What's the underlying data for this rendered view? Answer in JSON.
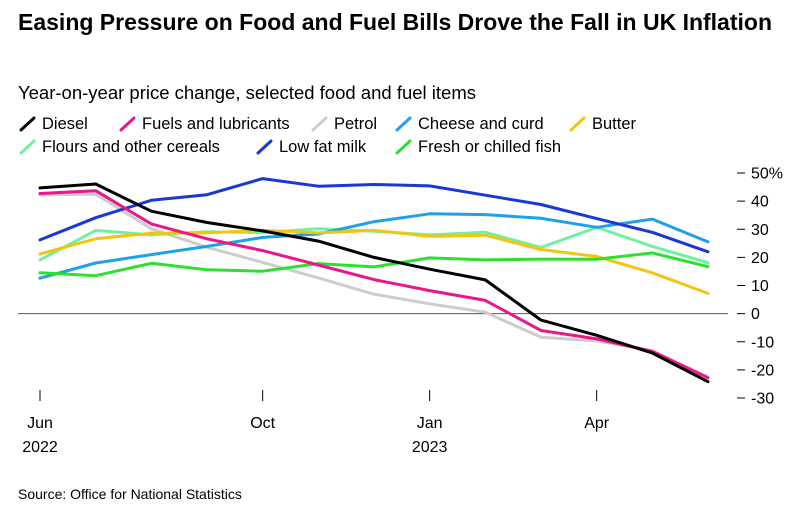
{
  "title": "Easing Pressure on Food and Fuel Bills Drove the Fall in UK Inflation",
  "subtitle": "Year-on-year price change, selected food and fuel items",
  "source": "Source: Office for National Statistics",
  "chart_data": {
    "type": "line",
    "title": "Easing Pressure on Food and Fuel Bills Drove the Fall in UK Inflation",
    "subtitle": "Year-on-year price change, selected food and fuel items",
    "x": [
      "2022-06",
      "2022-07",
      "2022-08",
      "2022-09",
      "2022-10",
      "2022-11",
      "2022-12",
      "2023-01",
      "2023-02",
      "2023-03",
      "2023-04",
      "2023-05",
      "2023-06"
    ],
    "x_ticks": [
      {
        "x": "2022-06",
        "label": "Jun",
        "year": "2022"
      },
      {
        "x": "2022-10",
        "label": "Oct",
        "year": ""
      },
      {
        "x": "2023-01",
        "label": "Jan",
        "year": "2023"
      },
      {
        "x": "2023-04",
        "label": "Apr",
        "year": ""
      }
    ],
    "y_ticks": [
      {
        "value": 50,
        "label": "50%"
      },
      {
        "value": 40,
        "label": "40"
      },
      {
        "value": 30,
        "label": "30"
      },
      {
        "value": 20,
        "label": "20"
      },
      {
        "value": 10,
        "label": "10"
      },
      {
        "value": 0,
        "label": "0"
      },
      {
        "value": -10,
        "label": "-10"
      },
      {
        "value": -20,
        "label": "-20"
      },
      {
        "value": -30,
        "label": "-30"
      }
    ],
    "ylim": [
      -30,
      50
    ],
    "grid": false,
    "zero_line": true,
    "legend_position": "top-left",
    "series": [
      {
        "name": "Diesel",
        "color": "#000000",
        "values": [
          44.7,
          46.1,
          36.4,
          32.4,
          29.4,
          25.8,
          20.0,
          15.8,
          12.0,
          -2.3,
          -7.7,
          -14.0,
          -24.2
        ]
      },
      {
        "name": "Fuels and lubricants",
        "color": "#e8178a",
        "values": [
          42.7,
          43.7,
          31.9,
          26.6,
          22.4,
          17.3,
          12.1,
          8.2,
          4.7,
          -6.0,
          -9.0,
          -13.4,
          -22.8
        ]
      },
      {
        "name": "Petrol",
        "color": "#cccccc",
        "values": [
          42.2,
          42.5,
          30.2,
          23.6,
          18.2,
          12.7,
          6.9,
          3.5,
          0.5,
          -8.4,
          -9.7,
          -13.2,
          -22.5
        ]
      },
      {
        "name": "Cheese and curd",
        "color": "#1ea1e8",
        "values": [
          12.6,
          18.0,
          21.0,
          23.9,
          27.1,
          28.3,
          32.7,
          35.5,
          35.2,
          33.9,
          30.7,
          33.6,
          25.5
        ]
      },
      {
        "name": "Butter",
        "color": "#f2c413",
        "values": [
          21.2,
          26.6,
          28.6,
          28.7,
          29.6,
          28.7,
          29.6,
          27.5,
          27.9,
          22.8,
          20.3,
          14.5,
          7.2
        ]
      },
      {
        "name": "Flours and other cereals",
        "color": "#6ef2a0",
        "values": [
          19.1,
          29.6,
          28.0,
          29.1,
          28.8,
          30.2,
          29.3,
          28.0,
          28.9,
          23.5,
          30.7,
          23.9,
          18.1
        ]
      },
      {
        "name": "Low fat milk",
        "color": "#1a37d8",
        "values": [
          26.2,
          34.1,
          40.3,
          42.3,
          48.0,
          45.3,
          45.9,
          45.4,
          42.1,
          38.8,
          33.8,
          28.9,
          22.0
        ]
      },
      {
        "name": "Fresh or chilled fish",
        "color": "#2de02d",
        "values": [
          14.5,
          13.5,
          17.9,
          15.6,
          15.1,
          17.8,
          16.6,
          19.8,
          19.1,
          19.4,
          19.3,
          21.6,
          16.7
        ]
      }
    ]
  }
}
